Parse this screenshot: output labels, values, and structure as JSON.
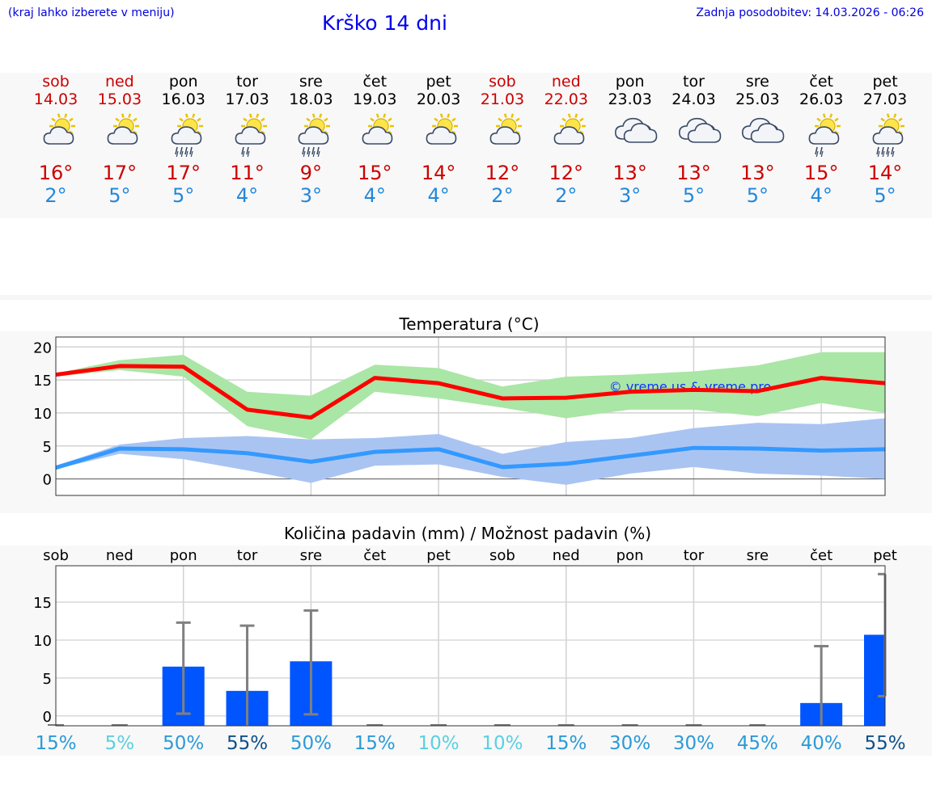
{
  "header": {
    "hint": "(kraj lahko izberete v meniju)",
    "title": "Krško 14 dni",
    "updated": "Zadnja posodobitev: 14.03.2026 - 06:26"
  },
  "days": [
    {
      "name": "sob",
      "date": "14.03",
      "weekend": true,
      "icon": "sun-cloud-icon",
      "max": "16°",
      "min": "2°"
    },
    {
      "name": "ned",
      "date": "15.03",
      "weekend": true,
      "icon": "sun-cloud-icon",
      "max": "17°",
      "min": "5°"
    },
    {
      "name": "pon",
      "date": "16.03",
      "weekend": false,
      "icon": "sun-cloud-rain-icon",
      "max": "17°",
      "min": "5°"
    },
    {
      "name": "tor",
      "date": "17.03",
      "weekend": false,
      "icon": "sun-cloud-drizzle-icon",
      "max": "11°",
      "min": "4°"
    },
    {
      "name": "sre",
      "date": "18.03",
      "weekend": false,
      "icon": "sun-cloud-rain-icon",
      "max": "9°",
      "min": "3°"
    },
    {
      "name": "čet",
      "date": "19.03",
      "weekend": false,
      "icon": "sun-cloud-icon",
      "max": "15°",
      "min": "4°"
    },
    {
      "name": "pet",
      "date": "20.03",
      "weekend": false,
      "icon": "sun-cloud-icon",
      "max": "14°",
      "min": "4°"
    },
    {
      "name": "sob",
      "date": "21.03",
      "weekend": true,
      "icon": "sun-cloud-icon",
      "max": "12°",
      "min": "2°"
    },
    {
      "name": "ned",
      "date": "22.03",
      "weekend": true,
      "icon": "sun-cloud-icon",
      "max": "12°",
      "min": "2°"
    },
    {
      "name": "pon",
      "date": "23.03",
      "weekend": false,
      "icon": "cloud-icon",
      "max": "13°",
      "min": "3°"
    },
    {
      "name": "tor",
      "date": "24.03",
      "weekend": false,
      "icon": "cloud-icon",
      "max": "13°",
      "min": "5°"
    },
    {
      "name": "sre",
      "date": "25.03",
      "weekend": false,
      "icon": "cloud-icon",
      "max": "13°",
      "min": "5°"
    },
    {
      "name": "čet",
      "date": "26.03",
      "weekend": false,
      "icon": "sun-cloud-drizzle-icon",
      "max": "15°",
      "min": "4°"
    },
    {
      "name": "pet",
      "date": "27.03",
      "weekend": false,
      "icon": "sun-cloud-rain-icon",
      "max": "14°",
      "min": "5°"
    }
  ],
  "colors": {
    "max_line": "#ff0000",
    "max_band": "#aae6a6",
    "min_line": "#3399ff",
    "min_band": "#aac4f2",
    "bar": "#0055ff",
    "whisker": "#808080"
  },
  "chart_data": [
    {
      "type": "line",
      "title": "Temperatura (°C)",
      "watermark": "© vreme.us & vreme.pro",
      "x": [
        0,
        1,
        2,
        3,
        4,
        5,
        6,
        7,
        8,
        9,
        10,
        11,
        12,
        13
      ],
      "ylim": [
        -2.5,
        21.5
      ],
      "yticks": [
        0,
        5,
        10,
        15,
        20
      ],
      "series": [
        {
          "name": "max",
          "values": [
            15.8,
            17.1,
            17.0,
            10.5,
            9.3,
            15.3,
            14.5,
            12.2,
            12.3,
            13.2,
            13.5,
            13.3,
            15.3,
            14.5
          ],
          "band_low": [
            15.5,
            16.5,
            15.5,
            8.0,
            6.0,
            13.2,
            12.2,
            10.8,
            9.2,
            10.5,
            10.5,
            9.5,
            11.5,
            10.0
          ],
          "band_high": [
            16.0,
            18.0,
            18.8,
            13.2,
            12.6,
            17.3,
            16.8,
            14.0,
            15.5,
            15.8,
            16.3,
            17.2,
            19.2,
            19.2
          ]
        },
        {
          "name": "min",
          "values": [
            1.7,
            4.6,
            4.5,
            3.9,
            2.6,
            4.1,
            4.5,
            1.8,
            2.3,
            3.5,
            4.7,
            4.6,
            4.3,
            4.5
          ],
          "band_low": [
            1.5,
            3.8,
            3.0,
            1.3,
            -0.6,
            2.0,
            2.2,
            0.3,
            -0.9,
            0.8,
            1.8,
            0.8,
            0.5,
            0.0
          ],
          "band_high": [
            2.0,
            5.2,
            6.2,
            6.5,
            6.0,
            6.2,
            6.8,
            3.8,
            5.6,
            6.2,
            7.7,
            8.5,
            8.3,
            9.2
          ]
        }
      ]
    },
    {
      "type": "bar",
      "title": "Količina padavin (mm) / Možnost padavin (%)",
      "categories": [
        "sob",
        "ned",
        "pon",
        "tor",
        "sre",
        "čet",
        "pet",
        "sob",
        "ned",
        "pon",
        "tor",
        "sre",
        "čet",
        "pet"
      ],
      "ylim": [
        -1.3,
        19.8
      ],
      "yticks": [
        0,
        5,
        10,
        15
      ],
      "values": [
        0,
        0,
        6.5,
        3.3,
        7.2,
        0,
        0,
        0,
        0,
        0,
        0,
        0,
        1.7,
        10.7
      ],
      "err_low": [
        0,
        0,
        0.3,
        null,
        0.2,
        0,
        0,
        0,
        0,
        0,
        0,
        0,
        null,
        2.6
      ],
      "err_high": [
        0,
        0,
        12.3,
        11.9,
        13.9,
        0,
        0,
        0,
        0,
        0,
        0,
        0,
        9.2,
        18.7
      ],
      "probability": [
        "15%",
        "5%",
        "50%",
        "55%",
        "50%",
        "15%",
        "10%",
        "10%",
        "15%",
        "30%",
        "30%",
        "45%",
        "40%",
        "55%"
      ],
      "prob_colors": [
        "#2a9ad8",
        "#5ad0e0",
        "#2a9ad8",
        "#0f4f8a",
        "#2a9ad8",
        "#2a9ad8",
        "#5ad0e0",
        "#5ad0e0",
        "#2a9ad8",
        "#2a9ad8",
        "#2a9ad8",
        "#2a9ad8",
        "#2a9ad8",
        "#0f4f8a"
      ]
    }
  ]
}
